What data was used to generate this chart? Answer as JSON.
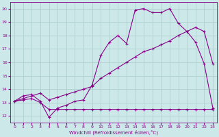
{
  "xlabel": "Windchill (Refroidissement éolien,°C)",
  "xlim": [
    -0.5,
    23.5
  ],
  "ylim": [
    11.5,
    20.5
  ],
  "xticks": [
    0,
    1,
    2,
    3,
    4,
    5,
    6,
    7,
    8,
    9,
    10,
    11,
    12,
    13,
    14,
    15,
    16,
    17,
    18,
    19,
    20,
    21,
    22,
    23
  ],
  "yticks": [
    12,
    13,
    14,
    15,
    16,
    17,
    18,
    19,
    20
  ],
  "bg_color": "#cce8e8",
  "line_color": "#880088",
  "grid_color": "#aacccc",
  "line1_x": [
    0,
    1,
    2,
    3,
    4,
    5,
    6,
    7,
    8,
    9,
    10,
    11,
    12,
    13,
    14,
    15,
    16,
    17,
    18,
    19,
    20,
    21,
    22,
    23
  ],
  "line1_y": [
    13.1,
    13.5,
    13.6,
    13.1,
    11.9,
    12.6,
    12.8,
    13.1,
    13.2,
    14.3,
    16.5,
    17.5,
    18.0,
    17.4,
    19.9,
    20.0,
    19.7,
    19.7,
    20.0,
    18.9,
    18.3,
    17.5,
    15.9,
    12.6
  ],
  "line2_x": [
    0,
    1,
    2,
    3,
    4,
    5,
    6,
    7,
    8,
    9,
    10,
    11,
    12,
    13,
    14,
    15,
    16,
    17,
    18,
    19,
    20,
    21,
    22,
    23
  ],
  "line2_y": [
    13.1,
    13.3,
    13.5,
    13.7,
    13.2,
    13.4,
    13.6,
    13.8,
    14.0,
    14.2,
    14.8,
    15.2,
    15.6,
    16.0,
    16.4,
    16.8,
    17.0,
    17.3,
    17.6,
    18.0,
    18.3,
    18.6,
    18.3,
    15.9
  ],
  "line3_x": [
    0,
    1,
    2,
    3,
    4,
    5,
    6,
    7,
    8,
    9,
    10,
    11,
    12,
    13,
    14,
    15,
    16,
    17,
    18,
    19,
    20,
    21,
    22,
    23
  ],
  "line3_y": [
    13.1,
    13.2,
    13.3,
    13.0,
    12.5,
    12.5,
    12.5,
    12.5,
    12.5,
    12.5,
    12.5,
    12.5,
    12.5,
    12.5,
    12.5,
    12.5,
    12.5,
    12.5,
    12.5,
    12.5,
    12.5,
    12.5,
    12.5,
    12.5
  ]
}
